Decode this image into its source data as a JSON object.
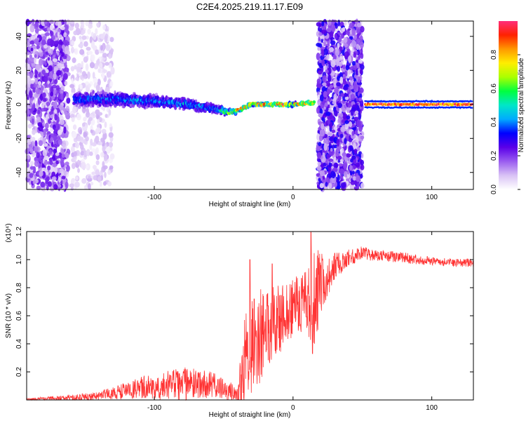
{
  "chart_data": [
    {
      "type": "heatmap",
      "title": "C2E4.2025.219.11.17.E09",
      "xlabel": "Height of straight line (km)",
      "ylabel": "Frequency (Hz)",
      "xlim": [
        -192,
        130
      ],
      "ylim": [
        -50,
        49
      ],
      "xticks": [
        -100,
        0,
        100
      ],
      "yticks": [
        -40,
        -20,
        0,
        20,
        40
      ],
      "colorbar": {
        "label": "Normalized spectral amplitude",
        "range": [
          0.0,
          1.0
        ],
        "ticks": [
          0.0,
          0.2,
          0.4,
          0.6,
          0.8
        ],
        "colormap": [
          "#ffffff",
          "#d9c2f5",
          "#9a5cf0",
          "#5a00e8",
          "#0000ff",
          "#00aaff",
          "#00e6c8",
          "#00ff40",
          "#aaff00",
          "#ffee00",
          "#ff9900",
          "#ff2200",
          "#ff2e7a"
        ]
      },
      "features": [
        {
          "label": "broadband noise",
          "x_range": [
            -192,
            -162
          ],
          "freq_range": [
            -50,
            49
          ],
          "level": 0.2
        },
        {
          "label": "sparse noise",
          "x_range": [
            -160,
            -130
          ],
          "freq_range": [
            -50,
            49
          ],
          "level": 0.08
        },
        {
          "label": "drifting band",
          "x": [
            -158,
            -130,
            -100,
            -75,
            -55,
            -45,
            -30,
            -10,
            0,
            15
          ],
          "freq": [
            3,
            3,
            2,
            0,
            -3,
            -5,
            0,
            0,
            0,
            1
          ],
          "width": [
            12,
            10,
            9,
            8,
            7,
            4,
            3,
            3,
            3,
            3
          ],
          "peak": [
            0.4,
            0.45,
            0.45,
            0.5,
            0.45,
            0.9,
            0.95,
            0.95,
            0.95,
            0.9
          ]
        },
        {
          "label": "broadband noise",
          "x_range": [
            18,
            50
          ],
          "freq_range": [
            -50,
            49
          ],
          "level": 0.25
        },
        {
          "label": "steady line",
          "x_range": [
            52,
            130
          ],
          "freq": 0,
          "width": 2,
          "peak": 0.97
        }
      ]
    },
    {
      "type": "line",
      "title": "",
      "xlabel": "Height of straight line (km)",
      "ylabel": "SNR (10 * v/v)",
      "yscale_label": "(x10⁴)",
      "xlim": [
        -192,
        130
      ],
      "ylim": [
        0,
        1.2
      ],
      "xticks": [
        -100,
        0,
        100
      ],
      "yticks": [
        0.2,
        0.4,
        0.6,
        0.8,
        1.0,
        1.2
      ],
      "color": "#ff3333",
      "envelope_x": [
        -192,
        -160,
        -140,
        -120,
        -100,
        -80,
        -60,
        -50,
        -40,
        -35,
        -30,
        -25,
        -20,
        -10,
        0,
        10,
        15,
        20,
        25,
        30,
        40,
        50,
        60,
        80,
        100,
        115,
        130
      ],
      "envelope_base": [
        0.0,
        0.01,
        0.02,
        0.05,
        0.07,
        0.08,
        0.08,
        0.05,
        0.03,
        0.15,
        0.25,
        0.35,
        0.4,
        0.5,
        0.6,
        0.62,
        0.6,
        0.75,
        0.82,
        0.92,
        1.0,
        1.03,
        1.02,
        1.0,
        0.98,
        0.97,
        0.97
      ],
      "envelope_noise": [
        0.01,
        0.02,
        0.03,
        0.06,
        0.1,
        0.12,
        0.1,
        0.08,
        0.05,
        0.35,
        0.4,
        0.35,
        0.3,
        0.25,
        0.2,
        0.25,
        0.35,
        0.25,
        0.15,
        0.1,
        0.06,
        0.05,
        0.04,
        0.04,
        0.03,
        0.03,
        0.03
      ],
      "peaks": [
        {
          "x": -31,
          "y": 1.0
        },
        {
          "x": -28,
          "y": 0.72
        },
        {
          "x": -15,
          "y": 0.97
        },
        {
          "x": 13,
          "y": 1.25
        },
        {
          "x": 14,
          "y": 0.33
        }
      ]
    }
  ]
}
